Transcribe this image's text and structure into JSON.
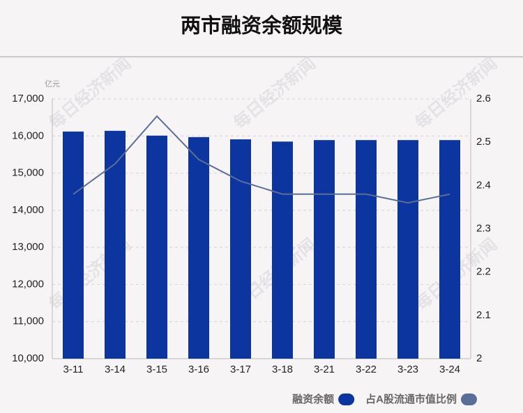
{
  "chart_data": {
    "type": "bar",
    "title": "两市融资余额规模",
    "unit_label": "亿元",
    "watermark": "每日经济新闻",
    "categories": [
      "3-11",
      "3-14",
      "3-15",
      "3-16",
      "3-17",
      "3-18",
      "3-21",
      "3-22",
      "3-23",
      "3-24"
    ],
    "series": [
      {
        "name": "融资余额",
        "type": "bar",
        "color": "#0d35a0",
        "values": [
          16120,
          16140,
          16010,
          15970,
          15910,
          15850,
          15890,
          15890,
          15890,
          15890
        ]
      },
      {
        "name": "占A股流通市值比例",
        "type": "line",
        "axis": "y2",
        "color": "#5b6e98",
        "values": [
          2.38,
          2.45,
          2.56,
          2.46,
          2.41,
          2.38,
          2.38,
          2.38,
          2.36,
          2.38
        ]
      }
    ],
    "ylim": [
      10000,
      17000
    ],
    "yticks": [
      {
        "value": 10000,
        "label": "10,000"
      },
      {
        "value": 11000,
        "label": "11,000"
      },
      {
        "value": 12000,
        "label": "12,000"
      },
      {
        "value": 13000,
        "label": "13,000"
      },
      {
        "value": 14000,
        "label": "14,000"
      },
      {
        "value": 15000,
        "label": "15,000"
      },
      {
        "value": 16000,
        "label": "16,000"
      },
      {
        "value": 17000,
        "label": "17,000"
      }
    ],
    "y2lim": [
      2,
      2.6
    ],
    "y2ticks": [
      2,
      2.1,
      2.2,
      2.3,
      2.4,
      2.5,
      2.6
    ],
    "grid": true
  }
}
